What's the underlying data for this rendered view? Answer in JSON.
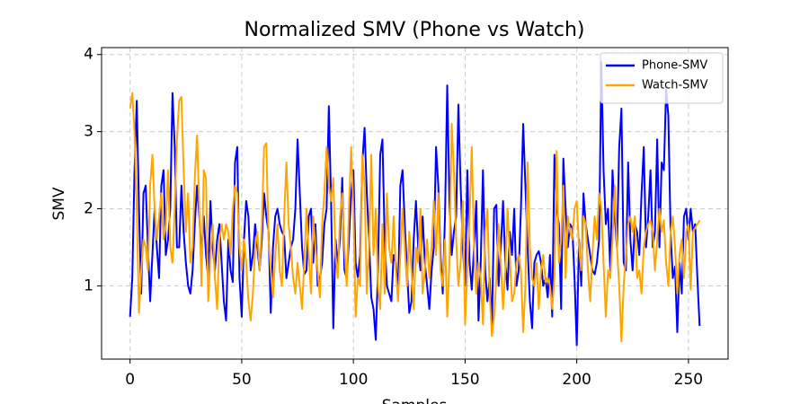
{
  "chart_data": {
    "type": "line",
    "title": "Normalized SMV (Phone vs Watch)",
    "xlabel": "Samples",
    "ylabel": "SMV",
    "x": [
      0,
      1,
      2,
      3,
      4,
      5,
      6,
      7,
      8,
      9,
      10,
      11,
      12,
      13,
      14,
      15,
      16,
      17,
      18,
      19,
      20,
      21,
      22,
      23,
      24,
      25,
      26,
      27,
      28,
      29,
      30,
      31,
      32,
      33,
      34,
      35,
      36,
      37,
      38,
      39,
      40,
      41,
      42,
      43,
      44,
      45,
      46,
      47,
      48,
      49,
      50,
      51,
      52,
      53,
      54,
      55,
      56,
      57,
      58,
      59,
      60,
      61,
      62,
      63,
      64,
      65,
      66,
      67,
      68,
      69,
      70,
      71,
      72,
      73,
      74,
      75,
      76,
      77,
      78,
      79,
      80,
      81,
      82,
      83,
      84,
      85,
      86,
      87,
      88,
      89,
      90,
      91,
      92,
      93,
      94,
      95,
      96,
      97,
      98,
      99,
      100,
      101,
      102,
      103,
      104,
      105,
      106,
      107,
      108,
      109,
      110,
      111,
      112,
      113,
      114,
      115,
      116,
      117,
      118,
      119,
      120,
      121,
      122,
      123,
      124,
      125,
      126,
      127,
      128,
      129,
      130,
      131,
      132,
      133,
      134,
      135,
      136,
      137,
      138,
      139,
      140,
      141,
      142,
      143,
      144,
      145,
      146,
      147,
      148,
      149,
      150,
      151,
      152,
      153,
      154,
      155,
      156,
      157,
      158,
      159,
      160,
      161,
      162,
      163,
      164,
      165,
      166,
      167,
      168,
      169,
      170,
      171,
      172,
      173,
      174,
      175,
      176,
      177,
      178,
      179,
      180,
      181,
      182,
      183,
      184,
      185,
      186,
      187,
      188,
      189,
      190,
      191,
      192,
      193,
      194,
      195,
      196,
      197,
      198,
      199,
      200,
      201,
      202,
      203,
      204,
      205,
      206,
      207,
      208,
      209,
      210,
      211,
      212,
      213,
      214,
      215,
      216,
      217,
      218,
      219,
      220,
      221,
      222,
      223,
      224,
      225,
      226,
      227,
      228,
      229,
      230,
      231,
      232,
      233,
      234,
      235,
      236,
      237,
      238,
      239,
      240,
      241,
      242,
      243,
      244,
      245,
      246,
      247,
      248,
      249,
      250,
      251,
      252,
      253,
      254,
      255
    ],
    "series": [
      {
        "name": "Phone-SMV",
        "color": "#0000ff",
        "values": [
          0.6,
          1.1,
          2.5,
          3.4,
          2.0,
          0.9,
          2.2,
          2.3,
          1.5,
          0.8,
          1.4,
          2.0,
          1.5,
          1.1,
          2.3,
          2.5,
          1.4,
          1.6,
          2.0,
          3.5,
          2.8,
          1.5,
          1.5,
          2.3,
          1.7,
          1.3,
          1.0,
          0.9,
          1.2,
          1.8,
          2.3,
          1.9,
          1.4,
          1.9,
          1.4,
          1.1,
          2.1,
          1.5,
          1.2,
          1.6,
          1.8,
          1.3,
          0.8,
          0.55,
          1.6,
          1.2,
          1.05,
          2.6,
          2.8,
          1.1,
          0.6,
          1.6,
          2.1,
          1.9,
          1.2,
          1.4,
          1.8,
          1.5,
          1.2,
          1.6,
          2.2,
          1.9,
          1.7,
          0.65,
          1.5,
          1.9,
          2.0,
          1.8,
          1.7,
          1.65,
          1.1,
          1.3,
          1.5,
          1.6,
          2.0,
          2.9,
          2.2,
          1.5,
          1.15,
          1.2,
          1.9,
          2.0,
          1.3,
          1.8,
          1.0,
          1.1,
          1.3,
          1.8,
          2.0,
          3.33,
          2.1,
          0.45,
          1.6,
          1.3,
          1.6,
          2.4,
          1.2,
          1.1,
          1.6,
          2.2,
          2.5,
          1.3,
          1.1,
          1.4,
          2.6,
          3.05,
          2.2,
          1.6,
          0.85,
          0.7,
          0.3,
          1.2,
          2.7,
          2.9,
          1.6,
          1.0,
          0.9,
          0.8,
          1.4,
          1.3,
          0.9,
          2.3,
          2.5,
          1.8,
          1.2,
          0.65,
          0.8,
          1.6,
          2.1,
          1.5,
          1.2,
          1.9,
          1.3,
          1.0,
          0.7,
          1.2,
          1.5,
          2.8,
          2.3,
          1.4,
          0.9,
          1.9,
          3.6,
          2.1,
          1.4,
          1.7,
          1.9,
          3.35,
          2.3,
          1.5,
          1.0,
          2.5,
          1.3,
          0.95,
          1.5,
          2.1,
          0.55,
          1.3,
          2.5,
          1.2,
          0.8,
          1.1,
          0.45,
          2.0,
          2.05,
          1.0,
          1.5,
          2.1,
          1.3,
          0.95,
          1.7,
          1.4,
          2.0,
          1.0,
          1.2,
          2.0,
          3.1,
          2.3,
          1.5,
          0.8,
          0.45,
          1.3,
          1.4,
          1.45,
          1.3,
          1.0,
          1.1,
          0.85,
          1.4,
          0.6,
          2.7,
          2.0,
          1.8,
          0.7,
          2.65,
          2.0,
          1.5,
          1.8,
          1.75,
          1.1,
          0.23,
          1.6,
          1.0,
          2.2,
          1.8,
          1.6,
          1.4,
          1.2,
          1.15,
          1.3,
          1.6,
          3.9,
          2.5,
          1.8,
          2.0,
          1.2,
          2.5,
          1.9,
          1.5,
          2.8,
          3.3,
          1.3,
          1.2,
          2.6,
          1.6,
          1.2,
          1.8,
          1.7,
          1.4,
          2.2,
          2.8,
          1.5,
          1.9,
          2.5,
          1.5,
          1.7,
          2.9,
          1.5,
          2.6,
          2.5,
          3.55,
          3.2,
          1.7,
          1.1,
          1.25,
          0.4,
          1.3,
          0.9,
          1.9,
          2.0,
          1.6,
          2.0,
          1.7,
          1.8,
          1.1,
          0.48
        ]
      },
      {
        "name": "Watch-SMV",
        "color": "#ffa500",
        "values": [
          3.3,
          3.5,
          3.0,
          2.0,
          0.65,
          1.2,
          1.6,
          1.5,
          1.2,
          2.3,
          2.7,
          2.0,
          1.6,
          1.9,
          2.2,
          1.6,
          1.8,
          2.5,
          1.5,
          1.3,
          2.0,
          2.9,
          3.4,
          3.45,
          2.5,
          1.7,
          2.2,
          1.3,
          1.5,
          2.4,
          2.95,
          2.0,
          1.0,
          2.5,
          2.4,
          0.8,
          1.4,
          1.8,
          1.1,
          0.7,
          1.6,
          1.8,
          1.6,
          1.8,
          1.7,
          1.4,
          2.0,
          2.3,
          2.2,
          1.5,
          1.2,
          1.6,
          1.3,
          0.8,
          0.55,
          0.9,
          1.5,
          1.7,
          1.2,
          1.8,
          2.8,
          2.85,
          1.6,
          1.2,
          0.85,
          1.4,
          1.8,
          1.2,
          1.0,
          1.9,
          2.6,
          1.8,
          1.5,
          1.1,
          0.9,
          1.3,
          1.0,
          0.7,
          1.3,
          2.0,
          1.4,
          0.9,
          1.9,
          1.5,
          1.2,
          0.85,
          1.8,
          2.2,
          2.8,
          2.3,
          2.1,
          2.4,
          1.4,
          1.1,
          1.9,
          2.2,
          1.5,
          1.0,
          2.0,
          2.8,
          2.0,
          0.6,
          1.1,
          1.0,
          2.7,
          2.3,
          0.9,
          1.5,
          2.7,
          1.4,
          2.0,
          1.0,
          0.7,
          1.8,
          0.9,
          2.2,
          1.5,
          1.3,
          1.9,
          1.2,
          0.8,
          1.4,
          2.0,
          1.5,
          1.0,
          1.7,
          1.2,
          0.7,
          1.5,
          1.3,
          2.0,
          0.9,
          1.2,
          1.6,
          1.1,
          1.5,
          2.1,
          1.4,
          2.2,
          1.2,
          1.0,
          1.6,
          0.6,
          1.3,
          3.1,
          2.5,
          1.6,
          1.0,
          1.3,
          2.1,
          0.5,
          1.2,
          1.9,
          2.8,
          1.5,
          0.9,
          1.3,
          1.1,
          0.5,
          1.7,
          2.0,
          0.9,
          0.35,
          0.6,
          1.1,
          1.8,
          1.3,
          0.7,
          1.2,
          2.0,
          1.4,
          0.8,
          0.9,
          1.3,
          1.4,
          1.2,
          0.4,
          1.0,
          2.6,
          1.5,
          1.1,
          1.0,
          1.3,
          0.7,
          1.2,
          1.4,
          1.05,
          1.1,
          1.0,
          0.7,
          1.1,
          2.75,
          1.3,
          1.6,
          2.3,
          1.1,
          1.9,
          1.7,
          1.6,
          2.0,
          2.1,
          1.5,
          1.2,
          1.9,
          1.8,
          1.2,
          0.8,
          1.4,
          1.9,
          1.6,
          2.2,
          2.0,
          1.3,
          0.6,
          1.2,
          1.1,
          1.6,
          2.3,
          1.5,
          1.0,
          0.28,
          1.0,
          1.4,
          1.8,
          1.9,
          1.7,
          1.9,
          1.1,
          1.2,
          0.9,
          1.5,
          1.7,
          1.8,
          1.85,
          1.7,
          1.2,
          1.6,
          2.0,
          1.7,
          1.85,
          1.3,
          1.0,
          1.7,
          1.9,
          1.5,
          0.9,
          1.4,
          1.6,
          1.1,
          1.7,
          1.8,
          0.95,
          1.7,
          1.75,
          1.8,
          1.85
        ]
      }
    ],
    "xlim": [
      -12.75,
      267.75
    ],
    "ylim": [
      0.05,
      4.09
    ],
    "xticks": [
      0,
      50,
      100,
      150,
      200,
      250
    ],
    "yticks": [
      1,
      2,
      3,
      4
    ],
    "grid": true,
    "legend": "upper right"
  }
}
